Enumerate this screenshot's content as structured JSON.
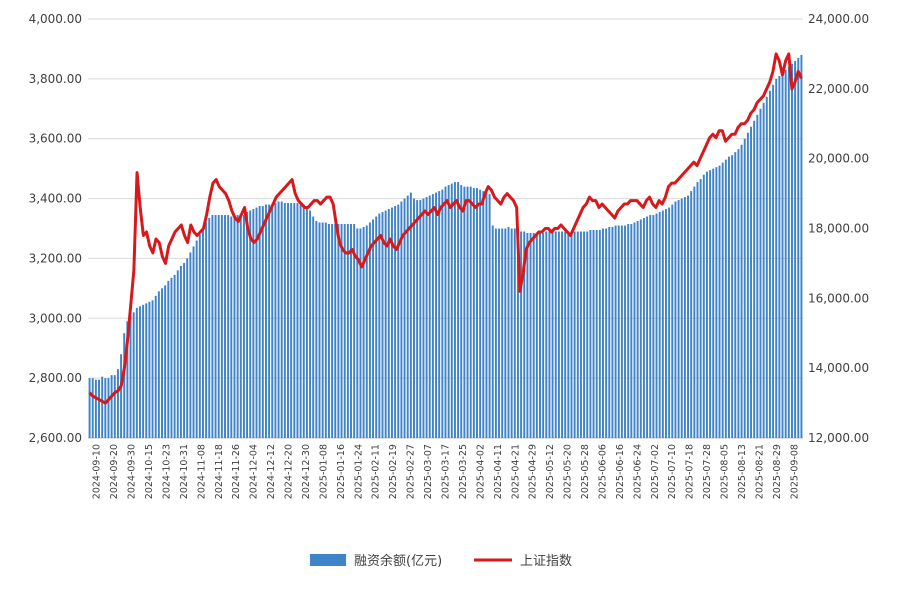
{
  "chart_data": {
    "type": "bar",
    "title": "",
    "legend_position": "bottom",
    "grid": true,
    "colors": {
      "bar": "#3f83c8",
      "line": "#d7191c",
      "grid": "#d9d9d9"
    },
    "y_left": {
      "range": [
        2600,
        4000
      ],
      "ticks": [
        2600,
        2800,
        3000,
        3200,
        3400,
        3600,
        3800,
        4000
      ],
      "tick_labels": [
        "2,600.00",
        "2,800.00",
        "3,000.00",
        "3,200.00",
        "3,400.00",
        "3,600.00",
        "3,800.00",
        "4,000.00"
      ]
    },
    "y_right": {
      "range": [
        12000,
        24000
      ],
      "ticks": [
        12000,
        14000,
        16000,
        18000,
        20000,
        22000,
        24000
      ],
      "tick_labels": [
        "12,000.00",
        "14,000.00",
        "16,000.00",
        "18,000.00",
        "20,000.00",
        "22,000.00",
        "24,000.00"
      ]
    },
    "x_tick_labels": [
      "2024-09-10",
      "2024-09-20",
      "2024-09-30",
      "2024-10-15",
      "2024-10-23",
      "2024-10-31",
      "2024-11-08",
      "2024-11-18",
      "2024-11-26",
      "2024-12-04",
      "2024-12-12",
      "2024-12-20",
      "2024-12-30",
      "2025-01-08",
      "2025-01-16",
      "2025-01-24",
      "2025-02-11",
      "2025-02-19",
      "2025-02-27",
      "2025-03-07",
      "2025-03-17",
      "2025-03-25",
      "2025-04-02",
      "2025-04-11",
      "2025-04-21",
      "2025-04-29",
      "2025-05-12",
      "2025-05-20",
      "2025-05-28",
      "2025-06-06",
      "2025-06-16",
      "2025-06-24",
      "2025-07-02",
      "2025-07-10",
      "2025-07-18",
      "2025-07-28",
      "2025-08-05",
      "2025-08-13",
      "2025-08-21",
      "2025-08-29",
      "2025-09-08"
    ],
    "series": [
      {
        "name": "融资余额(亿元)",
        "type": "bar",
        "axis": "left",
        "values": [
          2800,
          2800,
          2795,
          2795,
          2805,
          2800,
          2800,
          2810,
          2810,
          2830,
          2880,
          2950,
          2990,
          3010,
          3020,
          3035,
          3040,
          3045,
          3050,
          3055,
          3060,
          3075,
          3090,
          3100,
          3110,
          3125,
          3135,
          3145,
          3160,
          3175,
          3185,
          3200,
          3220,
          3240,
          3260,
          3280,
          3300,
          3320,
          3335,
          3345,
          3345,
          3345,
          3345,
          3345,
          3345,
          3340,
          3340,
          3345,
          3350,
          3345,
          3355,
          3360,
          3365,
          3370,
          3375,
          3375,
          3380,
          3380,
          3380,
          3385,
          3390,
          3390,
          3385,
          3385,
          3385,
          3385,
          3385,
          3380,
          3380,
          3375,
          3360,
          3340,
          3325,
          3320,
          3320,
          3320,
          3315,
          3315,
          3315,
          3315,
          3315,
          3315,
          3315,
          3315,
          3315,
          3300,
          3300,
          3305,
          3310,
          3320,
          3330,
          3340,
          3350,
          3355,
          3360,
          3365,
          3370,
          3375,
          3380,
          3390,
          3400,
          3410,
          3420,
          3400,
          3395,
          3395,
          3400,
          3405,
          3410,
          3415,
          3420,
          3425,
          3430,
          3440,
          3445,
          3450,
          3455,
          3455,
          3445,
          3440,
          3440,
          3440,
          3435,
          3435,
          3430,
          3425,
          3420,
          3415,
          3310,
          3300,
          3300,
          3300,
          3300,
          3305,
          3300,
          3300,
          3295,
          3290,
          3290,
          3285,
          3285,
          3285,
          3285,
          3285,
          3285,
          3290,
          3290,
          3290,
          3290,
          3290,
          3290,
          3290,
          3290,
          3290,
          3290,
          3290,
          3290,
          3290,
          3290,
          3295,
          3295,
          3295,
          3295,
          3300,
          3300,
          3305,
          3305,
          3310,
          3310,
          3310,
          3310,
          3315,
          3315,
          3320,
          3325,
          3330,
          3335,
          3340,
          3345,
          3345,
          3350,
          3355,
          3360,
          3365,
          3370,
          3380,
          3390,
          3395,
          3400,
          3405,
          3410,
          3425,
          3440,
          3455,
          3465,
          3480,
          3490,
          3495,
          3500,
          3505,
          3510,
          3520,
          3530,
          3540,
          3545,
          3555,
          3565,
          3580,
          3600,
          3620,
          3640,
          3660,
          3680,
          3700,
          3720,
          3740,
          3760,
          3780,
          3800,
          3810,
          3820,
          3830,
          3840,
          3850,
          3860,
          3870,
          3880
        ]
      },
      {
        "name": "上证指数",
        "type": "line",
        "axis": "right",
        "values": [
          13300,
          13200,
          13150,
          13100,
          13050,
          13000,
          13100,
          13200,
          13300,
          13350,
          13500,
          14000,
          14800,
          15800,
          16800,
          19600,
          18600,
          17800,
          17900,
          17500,
          17300,
          17700,
          17600,
          17200,
          17000,
          17500,
          17700,
          17900,
          18000,
          18100,
          17800,
          17600,
          18100,
          17900,
          17800,
          17900,
          18000,
          18400,
          18900,
          19300,
          19400,
          19200,
          19100,
          19000,
          18800,
          18500,
          18300,
          18200,
          18400,
          18600,
          18000,
          17700,
          17600,
          17700,
          17900,
          18100,
          18300,
          18500,
          18700,
          18900,
          19000,
          19100,
          19200,
          19300,
          19400,
          19000,
          18800,
          18700,
          18600,
          18600,
          18700,
          18800,
          18800,
          18700,
          18800,
          18900,
          18900,
          18700,
          18100,
          17600,
          17400,
          17300,
          17300,
          17400,
          17200,
          17100,
          16900,
          17100,
          17300,
          17500,
          17600,
          17700,
          17800,
          17600,
          17500,
          17700,
          17500,
          17400,
          17600,
          17800,
          17900,
          18000,
          18100,
          18200,
          18300,
          18400,
          18500,
          18400,
          18500,
          18600,
          18400,
          18600,
          18700,
          18800,
          18600,
          18700,
          18800,
          18600,
          18500,
          18800,
          18800,
          18700,
          18600,
          18700,
          18700,
          19000,
          19200,
          19100,
          18900,
          18800,
          18700,
          18900,
          19000,
          18900,
          18800,
          18600,
          16200,
          16700,
          17400,
          17600,
          17700,
          17800,
          17900,
          17900,
          18000,
          18000,
          17900,
          18000,
          18000,
          18100,
          18000,
          17900,
          17800,
          18000,
          18200,
          18400,
          18600,
          18700,
          18900,
          18800,
          18800,
          18600,
          18700,
          18600,
          18500,
          18400,
          18300,
          18500,
          18600,
          18700,
          18700,
          18800,
          18800,
          18800,
          18700,
          18600,
          18800,
          18900,
          18700,
          18600,
          18800,
          18700,
          18900,
          19200,
          19300,
          19300,
          19400,
          19500,
          19600,
          19700,
          19800,
          19900,
          19800,
          20000,
          20200,
          20400,
          20600,
          20700,
          20600,
          20800,
          20800,
          20500,
          20600,
          20700,
          20700,
          20900,
          21000,
          21000,
          21100,
          21300,
          21400,
          21600,
          21700,
          21800,
          22000,
          22200,
          22500,
          23000,
          22800,
          22400,
          22800,
          23000,
          22000,
          22200,
          22500,
          22300
        ]
      }
    ]
  }
}
